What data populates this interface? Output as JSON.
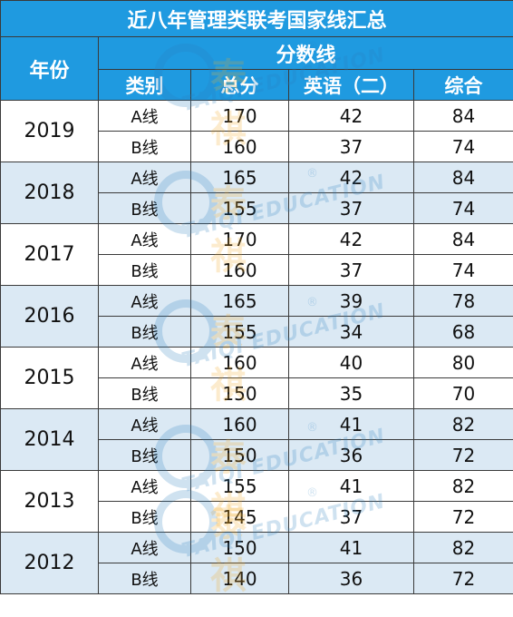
{
  "title": "近八年管理类联考国家线汇总",
  "header": {
    "year": "年份",
    "score_group": "分数线",
    "category": "类别",
    "total": "总分",
    "english": "英语（二）",
    "comprehensive": "综合"
  },
  "watermark": {
    "brand": "泰祺",
    "en": "TAIQI EDUCATION",
    "reg": "®"
  },
  "colors": {
    "header_bg": "#1f9ae0",
    "band_bg": "#dbe9f4",
    "border": "#3a3a3a"
  },
  "rows": [
    {
      "year": "2019",
      "lines": [
        {
          "cat": "A线",
          "total": "170",
          "english": "42",
          "comp": "84"
        },
        {
          "cat": "B线",
          "total": "160",
          "english": "37",
          "comp": "74"
        }
      ]
    },
    {
      "year": "2018",
      "lines": [
        {
          "cat": "A线",
          "total": "165",
          "english": "42",
          "comp": "84"
        },
        {
          "cat": "B线",
          "total": "155",
          "english": "37",
          "comp": "74"
        }
      ]
    },
    {
      "year": "2017",
      "lines": [
        {
          "cat": "A线",
          "total": "170",
          "english": "42",
          "comp": "84"
        },
        {
          "cat": "B线",
          "total": "160",
          "english": "37",
          "comp": "74"
        }
      ]
    },
    {
      "year": "2016",
      "lines": [
        {
          "cat": "A线",
          "total": "165",
          "english": "39",
          "comp": "78"
        },
        {
          "cat": "B线",
          "total": "155",
          "english": "34",
          "comp": "68"
        }
      ]
    },
    {
      "year": "2015",
      "lines": [
        {
          "cat": "A线",
          "total": "160",
          "english": "40",
          "comp": "80"
        },
        {
          "cat": "B线",
          "total": "150",
          "english": "35",
          "comp": "70"
        }
      ]
    },
    {
      "year": "2014",
      "lines": [
        {
          "cat": "A线",
          "total": "160",
          "english": "41",
          "comp": "82"
        },
        {
          "cat": "B线",
          "total": "150",
          "english": "36",
          "comp": "72"
        }
      ]
    },
    {
      "year": "2013",
      "lines": [
        {
          "cat": "A线",
          "total": "155",
          "english": "41",
          "comp": "82"
        },
        {
          "cat": "B线",
          "total": "145",
          "english": "37",
          "comp": "72"
        }
      ]
    },
    {
      "year": "2012",
      "lines": [
        {
          "cat": "A线",
          "total": "150",
          "english": "41",
          "comp": "82"
        },
        {
          "cat": "B线",
          "total": "140",
          "english": "36",
          "comp": "72"
        }
      ]
    }
  ]
}
